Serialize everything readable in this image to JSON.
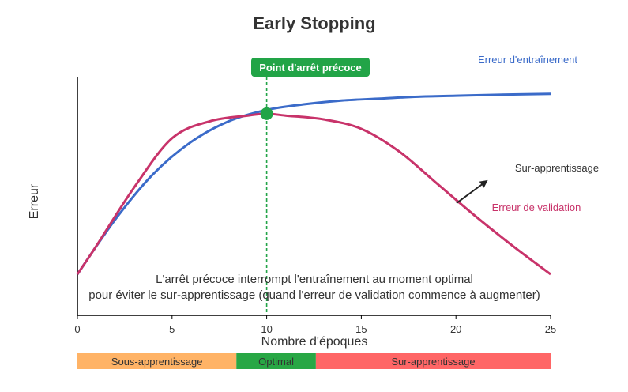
{
  "title": "Early Stopping",
  "y_axis_label": "Erreur",
  "x_axis_label": "Nombre d'époques",
  "stop_badge": "Point d'arrêt précoce",
  "labels": {
    "training": "Erreur d'entraînement",
    "validation": "Erreur de validation",
    "overfitting": "Sur-apprentissage"
  },
  "note_line1": "L'arrêt précoce interrompt l'entraînement au moment optimal",
  "note_line2": "pour éviter le sur-apprentissage (quand l'erreur de validation commence à augmenter)",
  "colors": {
    "training": "#3b6bc9",
    "validation": "#c8336a",
    "stop": "#22a447",
    "under": "#ffb366",
    "optimal": "#28a745",
    "over": "#ff6666"
  },
  "chart_data": {
    "type": "line",
    "xlim": [
      0,
      25
    ],
    "x_ticks": [
      "0",
      "5",
      "10",
      "15",
      "20",
      "25"
    ],
    "stop_epoch": 10,
    "series": [
      {
        "name": "Erreur d'entraînement",
        "x": [
          0,
          2,
          4,
          6,
          8,
          10,
          12,
          14,
          16,
          18,
          20,
          22,
          25
        ],
        "y": [
          0.0,
          0.29,
          0.53,
          0.7,
          0.81,
          0.87,
          0.9,
          0.92,
          0.93,
          0.94,
          0.945,
          0.95,
          0.955
        ]
      },
      {
        "name": "Erreur de validation",
        "x": [
          0,
          1,
          3,
          5,
          7,
          9,
          10,
          11,
          13,
          15,
          17,
          19,
          21,
          23,
          25
        ],
        "y": [
          0.0,
          0.15,
          0.46,
          0.72,
          0.81,
          0.84,
          0.85,
          0.84,
          0.82,
          0.77,
          0.65,
          0.48,
          0.31,
          0.15,
          0.0
        ]
      }
    ],
    "phases": [
      {
        "label": "Sous-apprentissage",
        "from": 0,
        "to": 8.4
      },
      {
        "label": "Optimal",
        "from": 8.4,
        "to": 12.6
      },
      {
        "label": "Sur-apprentissage",
        "from": 12.6,
        "to": 25
      }
    ]
  }
}
